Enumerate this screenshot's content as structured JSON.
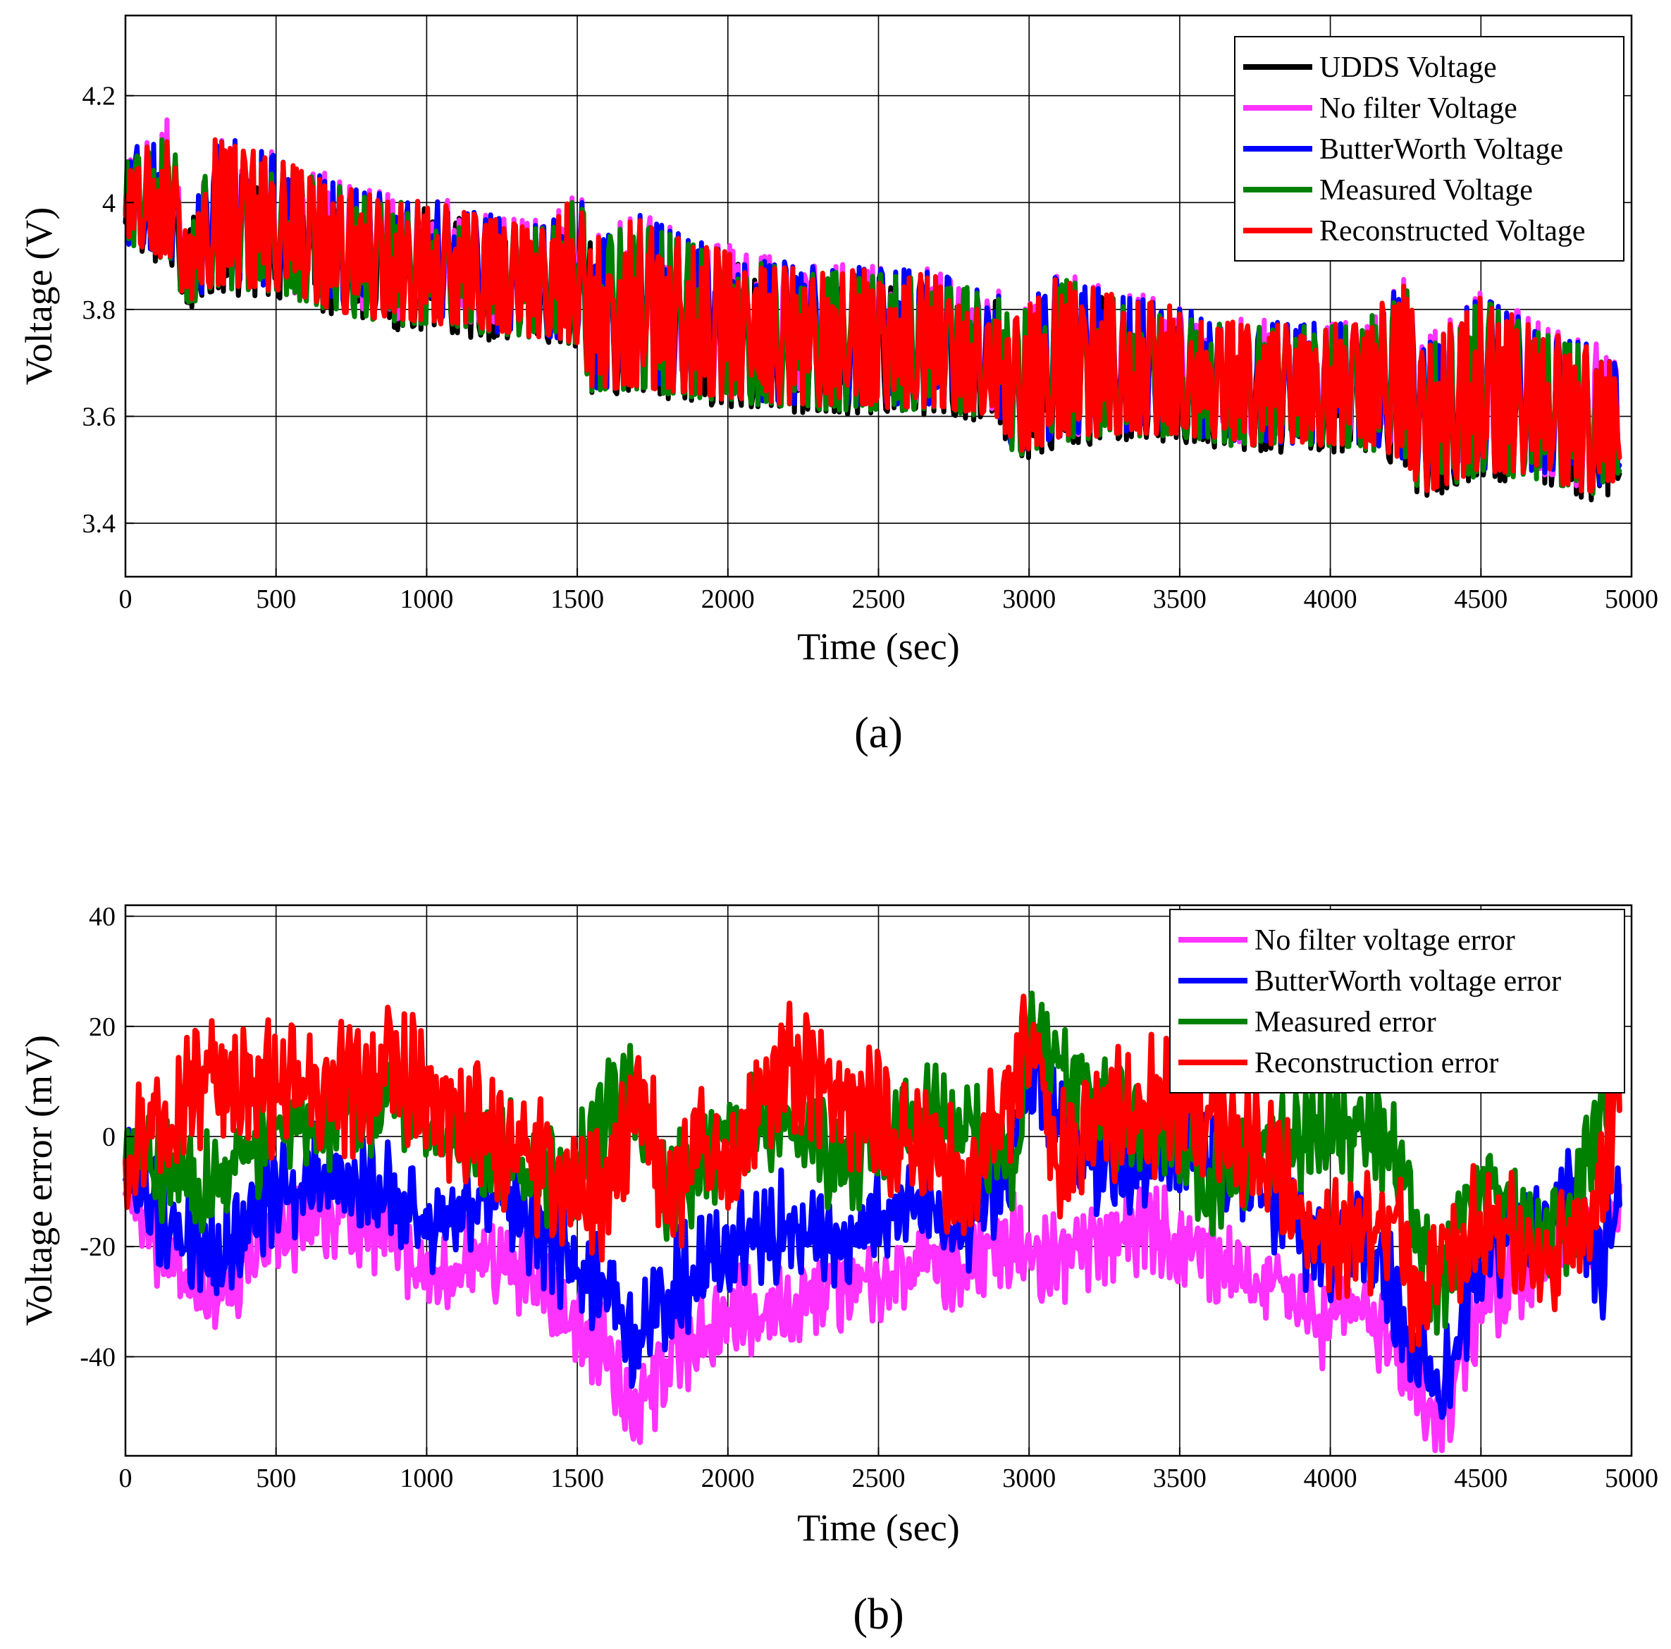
{
  "chart_data": [
    {
      "type": "line",
      "panel_label": "(a)",
      "xlabel": "Time (sec)",
      "ylabel": "Voltage (V)",
      "xlim": [
        0,
        5000
      ],
      "ylim": [
        3.3,
        4.35
      ],
      "xticks": [
        0,
        500,
        1000,
        1500,
        2000,
        2500,
        3000,
        3500,
        4000,
        4500,
        5000
      ],
      "yticks": [
        3.4,
        3.6,
        3.8,
        4.0,
        4.2
      ],
      "ytick_labels": [
        "3.4",
        "3.6",
        "3.8",
        "4",
        "4.2"
      ],
      "grid": true,
      "legend_position": "top-right",
      "series": [
        {
          "name": "UDDS Voltage",
          "color": "#000000",
          "offset": -0.012,
          "noise": 0.012,
          "seed": 11
        },
        {
          "name": "No filter Voltage",
          "color": "#ff33ff",
          "offset": 0.008,
          "noise": 0.015,
          "seed": 23
        },
        {
          "name": "ButterWorth Voltage",
          "color": "#0000ff",
          "offset": 0.004,
          "noise": 0.01,
          "seed": 37
        },
        {
          "name": "Measured Voltage",
          "color": "#008000",
          "offset": -0.004,
          "noise": 0.01,
          "seed": 41
        },
        {
          "name": "Reconstructed Voltage",
          "color": "#ff0000",
          "offset": 0.0,
          "noise": 0.008,
          "seed": 53
        }
      ],
      "envelope": {
        "x": [
          0,
          50,
          100,
          150,
          200,
          300,
          400,
          500,
          700,
          900,
          1000,
          1200,
          1400,
          1500,
          1550,
          1700,
          1900,
          2100,
          2300,
          2500,
          2700,
          2900,
          2950,
          3100,
          3300,
          3500,
          3700,
          3900,
          4100,
          4250,
          4300,
          4500,
          4700,
          4900,
          4960
        ],
        "high": [
          4.1,
          4.12,
          4.1,
          4.16,
          3.94,
          4.12,
          4.1,
          4.08,
          4.03,
          4.0,
          4.0,
          3.97,
          3.95,
          4.02,
          3.93,
          3.97,
          3.92,
          3.89,
          3.87,
          3.87,
          3.86,
          3.82,
          3.78,
          3.86,
          3.82,
          3.8,
          3.77,
          3.77,
          3.77,
          3.85,
          3.72,
          3.82,
          3.76,
          3.72,
          3.68
        ],
        "low": [
          3.92,
          3.92,
          3.9,
          3.9,
          3.81,
          3.85,
          3.84,
          3.84,
          3.8,
          3.78,
          3.78,
          3.76,
          3.75,
          3.74,
          3.65,
          3.66,
          3.64,
          3.63,
          3.62,
          3.62,
          3.62,
          3.6,
          3.53,
          3.56,
          3.57,
          3.57,
          3.55,
          3.55,
          3.55,
          3.52,
          3.46,
          3.5,
          3.49,
          3.45,
          3.5
        ]
      }
    },
    {
      "type": "line",
      "panel_label": "(b)",
      "xlabel": "Time (sec)",
      "ylabel": "Voltage error (mV)",
      "xlim": [
        0,
        5000
      ],
      "ylim": [
        -58,
        42
      ],
      "xticks": [
        0,
        500,
        1000,
        1500,
        2000,
        2500,
        3000,
        3500,
        4000,
        4500,
        5000
      ],
      "yticks": [
        -40,
        -20,
        0,
        20,
        40
      ],
      "ytick_labels": [
        "-40",
        "-20",
        "0",
        "20",
        "40"
      ],
      "grid": true,
      "legend_position": "top-right",
      "series": [
        {
          "name": "No filter voltage error",
          "color": "#ff33ff",
          "seed": 67,
          "noise": 6,
          "x": [
            0,
            100,
            300,
            500,
            700,
            900,
            1000,
            1200,
            1400,
            1500,
            1600,
            1700,
            1800,
            1900,
            2000,
            2200,
            2400,
            2600,
            2800,
            2950,
            3000,
            3200,
            3400,
            3600,
            3800,
            4000,
            4100,
            4200,
            4300,
            4350,
            4400,
            4500,
            4700,
            4800,
            4900,
            4960
          ],
          "y": [
            -5,
            -20,
            -28,
            -18,
            -14,
            -18,
            -26,
            -22,
            -28,
            -36,
            -38,
            -52,
            -40,
            -36,
            -32,
            -30,
            -28,
            -22,
            -24,
            -18,
            -24,
            -20,
            -16,
            -22,
            -28,
            -35,
            -30,
            -38,
            -46,
            -55,
            -48,
            -30,
            -22,
            -14,
            -20,
            -10
          ]
        },
        {
          "name": "ButterWorth voltage error",
          "color": "#0000ff",
          "seed": 79,
          "noise": 7,
          "x": [
            0,
            100,
            300,
            500,
            700,
            900,
            1000,
            1200,
            1400,
            1500,
            1600,
            1700,
            1800,
            1900,
            2000,
            2200,
            2400,
            2600,
            2800,
            2950,
            3000,
            3200,
            3400,
            3600,
            3800,
            4000,
            4100,
            4200,
            4300,
            4350,
            4400,
            4500,
            4700,
            4800,
            4900,
            4960
          ],
          "y": [
            -3,
            -14,
            -22,
            -10,
            -6,
            -12,
            -16,
            -10,
            -18,
            -26,
            -25,
            -38,
            -28,
            -24,
            -20,
            -16,
            -20,
            -12,
            -16,
            -2,
            12,
            -6,
            -4,
            -2,
            -10,
            -24,
            -18,
            -28,
            -40,
            -46,
            -40,
            -22,
            -16,
            -10,
            -26,
            -8
          ]
        },
        {
          "name": "Measured error",
          "color": "#008000",
          "seed": 83,
          "noise": 7,
          "x": [
            0,
            100,
            300,
            500,
            700,
            900,
            1000,
            1200,
            1400,
            1500,
            1600,
            1700,
            1800,
            1900,
            2000,
            2200,
            2400,
            2600,
            2800,
            2950,
            3000,
            3200,
            3400,
            3600,
            3800,
            4000,
            4100,
            4200,
            4300,
            4350,
            4400,
            4500,
            4700,
            4800,
            4900,
            4960
          ],
          "y": [
            -5,
            -5,
            -8,
            0,
            4,
            6,
            2,
            -2,
            -6,
            -6,
            6,
            8,
            -10,
            -5,
            0,
            4,
            -6,
            4,
            2,
            -4,
            18,
            6,
            2,
            -8,
            -2,
            2,
            0,
            -2,
            -18,
            -30,
            -22,
            -8,
            -20,
            -14,
            2,
            18
          ]
        },
        {
          "name": "Reconstruction error",
          "color": "#ff0000",
          "seed": 97,
          "noise": 9,
          "x": [
            0,
            100,
            300,
            500,
            700,
            900,
            1000,
            1200,
            1400,
            1500,
            1600,
            1700,
            1800,
            1900,
            2000,
            2100,
            2200,
            2400,
            2600,
            2800,
            2950,
            3000,
            3100,
            3200,
            3400,
            3600,
            3800,
            4000,
            4100,
            4200,
            4300,
            4400,
            4500,
            4700,
            4800,
            4900,
            4960
          ],
          "y": [
            -2,
            4,
            12,
            8,
            8,
            12,
            6,
            0,
            -6,
            -10,
            -12,
            6,
            -10,
            -4,
            -6,
            4,
            12,
            6,
            0,
            -10,
            10,
            18,
            -4,
            2,
            6,
            4,
            -4,
            -22,
            -18,
            -16,
            -30,
            -20,
            -14,
            -24,
            -20,
            -10,
            10
          ]
        }
      ]
    }
  ]
}
